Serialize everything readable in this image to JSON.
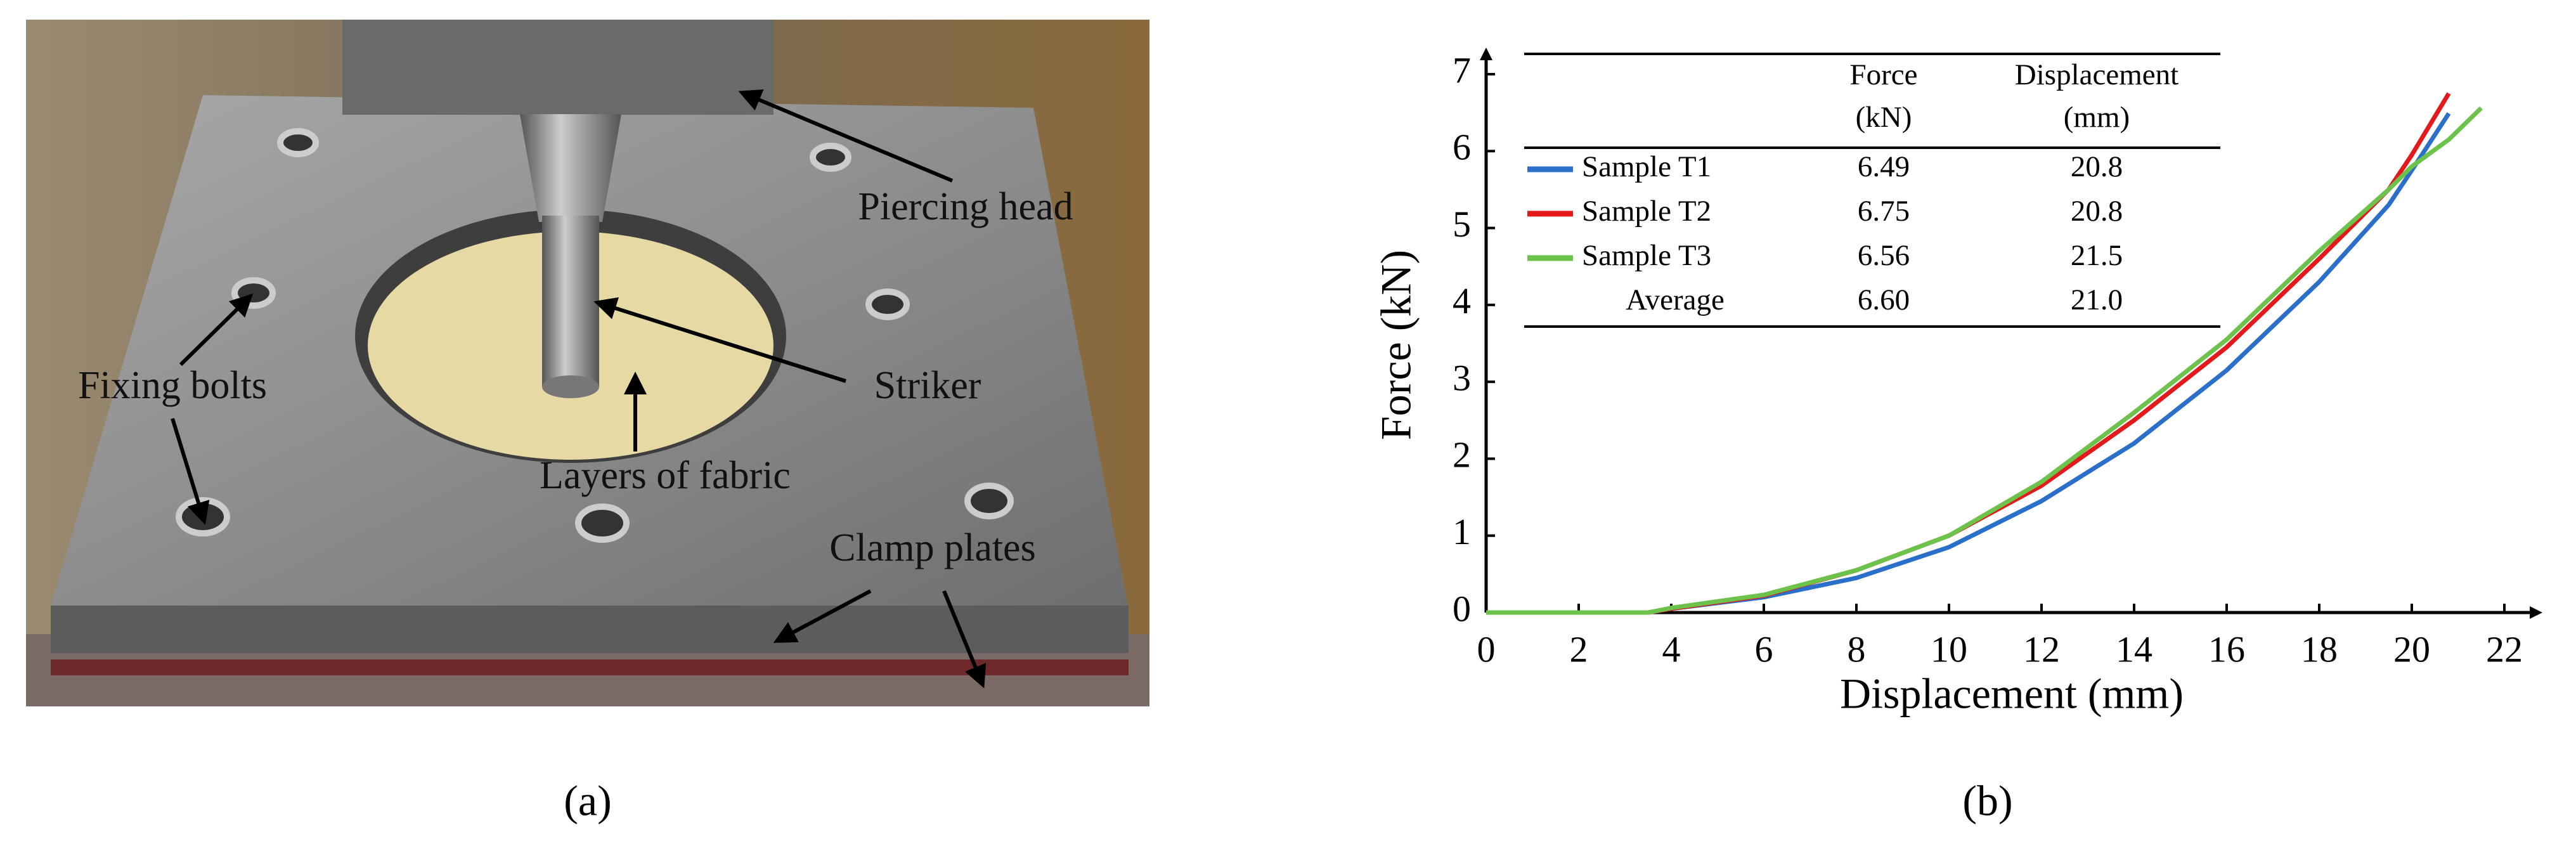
{
  "photo": {
    "labels": [
      "Piercing head",
      "Fixing bolts",
      "Striker",
      "Layers of fabric",
      "Clamp plates"
    ],
    "caption": "(a)"
  },
  "chart_data": {
    "type": "line",
    "xlabel": "Displacement (mm)",
    "ylabel": "Force (kN)",
    "x": [
      0,
      3.5,
      4,
      6,
      8,
      10,
      12,
      14,
      16,
      18,
      19.5,
      20,
      20.8,
      21.5
    ],
    "series": [
      {
        "name": "Sample T1",
        "color": "#2a6fc9",
        "values": [
          0,
          0,
          0.05,
          0.2,
          0.45,
          0.85,
          1.45,
          2.2,
          3.15,
          4.3,
          5.3,
          5.75,
          6.49,
          null
        ]
      },
      {
        "name": "Sample T2",
        "color": "#e3191c",
        "values": [
          0,
          0,
          0.05,
          0.22,
          0.55,
          1.0,
          1.65,
          2.5,
          3.45,
          4.6,
          5.5,
          5.95,
          6.75,
          null
        ]
      },
      {
        "name": "Sample T3",
        "color": "#6cc24a",
        "values": [
          0,
          0,
          0.06,
          0.23,
          0.55,
          1.0,
          1.7,
          2.6,
          3.55,
          4.7,
          5.5,
          5.8,
          6.15,
          6.56
        ]
      }
    ],
    "xlim": [
      0,
      22
    ],
    "xticks": [
      0,
      2,
      4,
      6,
      8,
      10,
      12,
      14,
      16,
      18,
      20,
      22
    ],
    "ylim": [
      0,
      7
    ],
    "yticks": [
      0,
      1,
      2,
      3,
      4,
      5,
      6,
      7
    ],
    "table": {
      "columns": [
        [
          "Force",
          "(kN)"
        ],
        [
          "Displacement",
          "(mm)"
        ]
      ],
      "rows": [
        [
          "6.49",
          "20.8"
        ],
        [
          "6.75",
          "20.8"
        ],
        [
          "6.56",
          "21.5"
        ]
      ],
      "average": {
        "label": "Average",
        "values": [
          "6.60",
          "21.0"
        ]
      }
    },
    "caption": "(b)"
  }
}
